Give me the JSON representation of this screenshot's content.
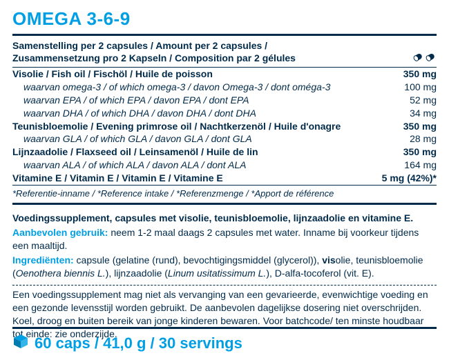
{
  "title": "OMEGA 3-6-9",
  "colors": {
    "accent": "#009fe3",
    "text": "#002a4a",
    "background": "#ffffff"
  },
  "header": {
    "line1": "Samenstelling per 2 capsules / Amount per 2 capsules /",
    "line2": "Zusammensetzung pro 2 Kapseln / Composition par 2 gélules"
  },
  "rows": [
    {
      "type": "main",
      "label": "Visolie / Fish oil / Fischöl / Huile de poisson",
      "value": "350 mg"
    },
    {
      "type": "sub",
      "label": "waarvan omega-3 / of which omega-3 / davon Omega-3 / dont oméga-3",
      "value": "100 mg"
    },
    {
      "type": "sub",
      "label": "waarvan EPA / of which EPA / davon EPA / dont EPA",
      "value": "52 mg"
    },
    {
      "type": "sub",
      "label": "waarvan DHA / of which DHA / davon DHA / dont DHA",
      "value": "34 mg"
    },
    {
      "type": "main",
      "label": "Teunisbloemolie / Evening primrose oil / Nachtkerzenöl / Huile d'onagre",
      "value": "350 mg"
    },
    {
      "type": "sub",
      "label": "waarvan GLA / of which GLA / davon GLA / dont GLA",
      "value": "28 mg"
    },
    {
      "type": "main",
      "label": "Lijnzaadolie / Flaxseed oil / Leinsamenöl / Huile de lin",
      "value": "350 mg"
    },
    {
      "type": "sub",
      "label": "waarvan ALA / of which ALA / davon ALA / dont ALA",
      "value": "164 mg"
    },
    {
      "type": "main",
      "label": "Vitamine E / Vitamin E / Vitamin E / Vitamine E",
      "value": "5 mg (42%)*"
    }
  ],
  "footnote": "*Referentie-inname / *Reference intake / *Referenzmenge / *Apport de référence",
  "body": {
    "headline": "Voedingssupplement, capsules met visolie, teunisbloemolie, lijnzaadolie en vitamine E.",
    "usage_label": "Aanbevolen gebruik:",
    "usage_text": " neem 1-2 maal daags 2 capsules met water. Inname bij voorkeur tijdens een maaltijd.",
    "ingredients_label": "Ingrediënten:",
    "ingredients_a": " capsule (gelatine (rund), bevochtigingsmiddel (glycerol)), ",
    "ingredients_vis": "vis",
    "ingredients_b": "olie, teunis­bloemolie (",
    "ingredients_i1": "Oenothera biennis L.",
    "ingredients_c": "), lijnzaadolie (",
    "ingredients_i2": "Linum usitatissimum L.",
    "ingredients_d": "), D-alfa-tocoferol (vit. E).",
    "disclaimer": "Een voedingssupplement mag niet als vervanging van een gevarieerde, evenwichtige voeding en een gezonde levensstijl worden gebruikt. De aanbevolen dagelijkse dosering niet overschrijden. Koel, droog en buiten bereik van jonge kinderen bewaren. Voor batchcode/ ten minste houdbaar tot einde: zie onderzijde."
  },
  "footer": "60 caps / 41,0 g / 30 servings"
}
